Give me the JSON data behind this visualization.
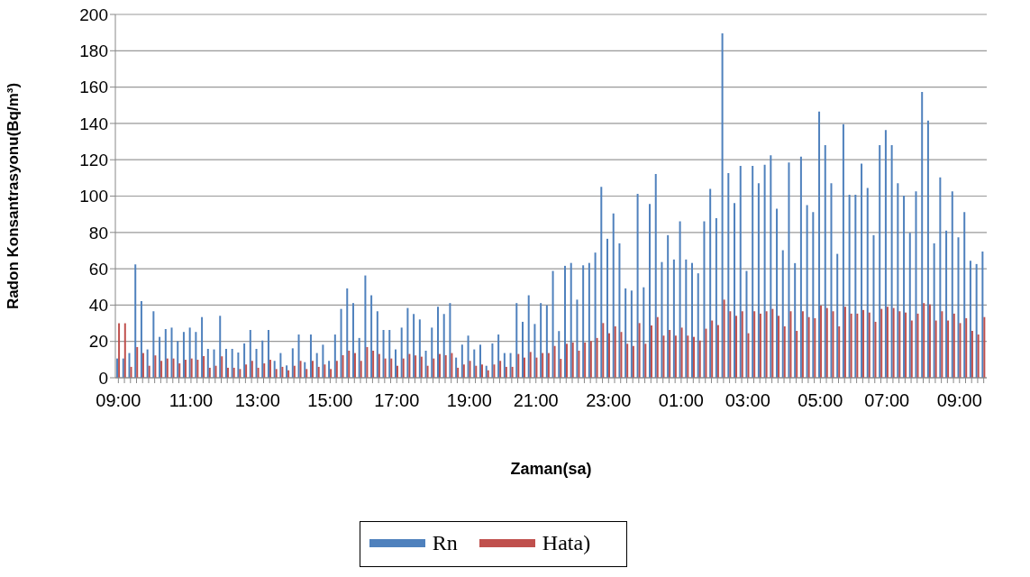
{
  "chart_data": {
    "type": "bar",
    "xlabel": "Zaman(sa)",
    "ylabel": "Radon Konsantrasyonu(Bq/m³)",
    "categories": [
      "09:00",
      null,
      null,
      null,
      null,
      null,
      null,
      null,
      null,
      null,
      null,
      null,
      "11:00",
      null,
      null,
      null,
      null,
      null,
      null,
      null,
      null,
      null,
      null,
      "13:00",
      null,
      null,
      null,
      null,
      null,
      null,
      null,
      null,
      null,
      null,
      null,
      "15:00",
      null,
      null,
      null,
      null,
      null,
      null,
      null,
      null,
      null,
      null,
      "17:00",
      null,
      null,
      null,
      null,
      null,
      null,
      null,
      null,
      null,
      null,
      null,
      "19:00",
      null,
      null,
      null,
      null,
      null,
      null,
      null,
      null,
      null,
      null,
      "21:00",
      null,
      null,
      null,
      null,
      null,
      null,
      null,
      null,
      null,
      null,
      null,
      "23:00",
      null,
      null,
      null,
      null,
      null,
      null,
      null,
      null,
      null,
      null,
      null,
      "01:00",
      null,
      null,
      null,
      null,
      null,
      null,
      null,
      null,
      null,
      null,
      "03:00",
      null,
      null,
      null,
      null,
      null,
      null,
      null,
      null,
      null,
      null,
      null,
      "05:00",
      null,
      null,
      null,
      null,
      null,
      null,
      null,
      null,
      null,
      null,
      "07:00",
      null,
      null,
      null,
      null,
      null,
      null,
      null,
      null,
      null,
      null,
      null,
      "09:00",
      null,
      null,
      null,
      null
    ],
    "series": [
      {
        "name": "Rn",
        "color": "#4f81bd",
        "values": [
          10.6,
          10.6,
          13.6,
          62.4,
          42.2,
          15.6,
          36.6,
          22.5,
          26.8,
          27.6,
          20.2,
          25.2,
          27.6,
          25.2,
          33.4,
          15.9,
          15.6,
          34.1,
          15.9,
          15.9,
          13.9,
          18.9,
          26.3,
          15.9,
          20.5,
          26.3,
          9.3,
          13.6,
          6.8,
          16.2,
          23.8,
          8.6,
          23.8,
          13.6,
          18.2,
          9.3,
          23.8,
          37.9,
          49.2,
          41.1,
          21.9,
          56.3,
          45.4,
          36.6,
          26.3,
          26.3,
          15.6,
          27.6,
          38.4,
          35.1,
          32.1,
          14.9,
          27.6,
          39.1,
          35.1,
          41.1,
          11.1,
          18.2,
          23.2,
          15.6,
          18.2,
          6.6,
          18.9,
          23.8,
          13.6,
          13.6,
          41.1,
          30.8,
          45.4,
          29.6,
          41.1,
          39.9,
          58.8,
          25.7,
          61.6,
          63.2,
          43,
          61.9,
          63.2,
          68.9,
          105.1,
          76.5,
          90.4,
          74,
          49.2,
          48,
          101.3,
          49.8,
          95.7,
          112.1,
          63.7,
          78.5,
          65.1,
          86.1,
          65.1,
          63.2,
          57.5,
          86.1,
          104,
          87.9,
          189.6,
          112.7,
          96.2,
          116.6,
          58.8,
          116.6,
          107.1,
          117.2,
          122.4,
          93,
          70.2,
          118.5,
          63.1,
          121.7,
          95,
          91.2,
          146.5,
          128,
          107.1,
          68.2,
          139.6,
          100.7,
          100.7,
          117.9,
          104.5,
          78.5,
          128,
          136.4,
          128,
          107.1,
          100.2,
          79.8,
          102.6,
          157.3,
          141.6,
          74,
          110.3,
          81,
          102.6,
          77.3,
          91.2,
          64.4,
          62.6,
          69.5
        ]
      },
      {
        "name": "Hata)",
        "color": "#c0504d",
        "values": [
          30,
          30,
          6,
          16.9,
          13.6,
          6.6,
          12.3,
          9.3,
          10.6,
          10.6,
          7.9,
          9.9,
          10.6,
          9.9,
          11.9,
          5.5,
          6.6,
          11.8,
          5.5,
          5.5,
          4.8,
          7.3,
          9.3,
          5.5,
          7.9,
          9.9,
          4.8,
          6,
          4.1,
          6.6,
          9.3,
          4.8,
          9.3,
          6,
          7.3,
          4.8,
          9.3,
          12.4,
          14.9,
          13.6,
          9.3,
          16.9,
          14.9,
          13.1,
          10.6,
          10.6,
          6.6,
          10.6,
          13.1,
          12.3,
          11.6,
          6.6,
          10.6,
          13.1,
          12.4,
          13.6,
          5.5,
          7.3,
          9.3,
          6.6,
          7.3,
          4.1,
          7.3,
          9.3,
          6,
          6,
          13.1,
          11.1,
          14.2,
          11.1,
          13.6,
          13.6,
          17.5,
          10.4,
          18.7,
          19.4,
          14.9,
          19.4,
          20.2,
          21.9,
          30.1,
          24.5,
          28.3,
          25.2,
          18.7,
          17.5,
          30.1,
          18.7,
          28.8,
          33.4,
          23.2,
          26.3,
          23.2,
          27.6,
          23.2,
          22.5,
          20.5,
          27,
          31.5,
          29,
          43,
          36.6,
          34.1,
          36.6,
          24.5,
          36.6,
          35.3,
          36.6,
          37.9,
          34.1,
          28.3,
          36.6,
          25.8,
          36.6,
          33.4,
          32.8,
          39.7,
          38.4,
          36.6,
          28.3,
          39.1,
          35.3,
          35.3,
          37.3,
          35.9,
          30.8,
          37.9,
          39.1,
          38.4,
          36.6,
          35.9,
          31.5,
          35.3,
          41.1,
          40.4,
          31.5,
          36.6,
          31.5,
          35.3,
          30.1,
          32.8,
          25.8,
          23.8,
          33.4
        ]
      }
    ],
    "ylim": [
      0,
      200
    ],
    "yticks": [
      0,
      20,
      40,
      60,
      80,
      100,
      120,
      140,
      160,
      180,
      200
    ],
    "grid": "y",
    "legend": "bottom"
  }
}
